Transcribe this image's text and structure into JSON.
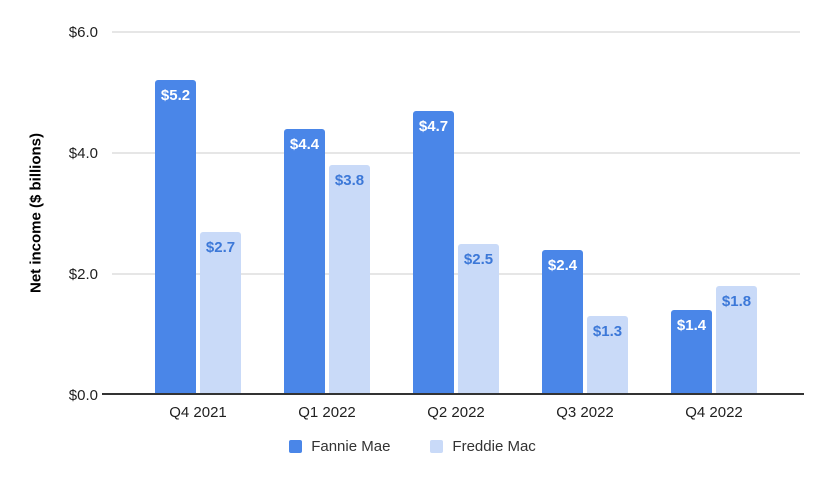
{
  "chart_data": {
    "type": "bar",
    "title": "",
    "xlabel": "",
    "ylabel": "Net income ($ billions)",
    "categories": [
      "Q4 2021",
      "Q1 2022",
      "Q2 2022",
      "Q3 2022",
      "Q4 2022"
    ],
    "series": [
      {
        "name": "Fannie Mae",
        "color": "#4a86e8",
        "label_color": "#ffffff",
        "values": [
          5.2,
          4.4,
          4.7,
          2.4,
          1.4
        ],
        "labels": [
          "$5.2",
          "$4.4",
          "$4.7",
          "$2.4",
          "$1.4"
        ]
      },
      {
        "name": "Freddie Mac",
        "color": "#c9daf8",
        "label_color": "#3c78d8",
        "values": [
          2.7,
          3.8,
          2.5,
          1.3,
          1.8
        ],
        "labels": [
          "$2.7",
          "$3.8",
          "$2.5",
          "$1.3",
          "$1.8"
        ]
      }
    ],
    "ylim": [
      0,
      6
    ],
    "yticks": [
      0,
      2,
      4,
      6
    ],
    "ytick_labels": [
      "$0.0",
      "$2.0",
      "$4.0",
      "$6.0"
    ],
    "grid": true,
    "legend_position": "bottom"
  },
  "colors": {
    "gridline": "#cccccc",
    "axis_line": "#333333",
    "tick_text": "#1f1f1f"
  }
}
